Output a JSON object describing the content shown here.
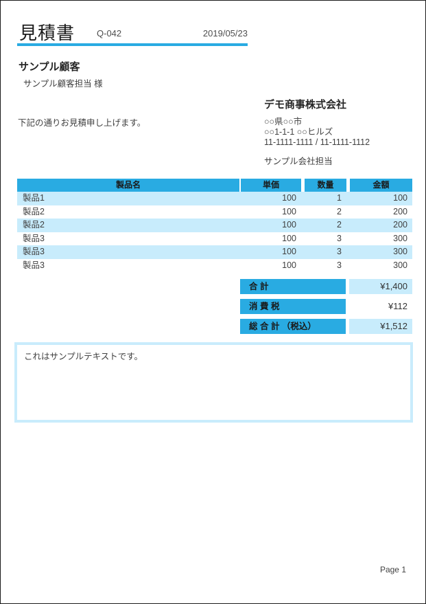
{
  "document": {
    "title": "見積書",
    "quote_number": "Q-042",
    "date": "2019/05/23"
  },
  "customer": {
    "name": "サンプル顧客",
    "contact": "サンプル顧客担当 様"
  },
  "greeting": "下記の通りお見積申し上げます。",
  "company": {
    "name": "デモ商事株式会社",
    "address_line1": "○○県○○市",
    "address_line2": "○○1-1-1 ○○ヒルズ",
    "phone_fax": "11-1111-1111 / 11-1111-1112",
    "contact": "サンプル会社担当"
  },
  "items_table": {
    "headers": {
      "name": "製品名",
      "unit_price": "単価",
      "quantity": "数量",
      "amount": "金額"
    },
    "rows": [
      {
        "name": "製品1",
        "unit_price": "100",
        "quantity": "1",
        "amount": "100"
      },
      {
        "name": "製品2",
        "unit_price": "100",
        "quantity": "2",
        "amount": "200"
      },
      {
        "name": "製品2",
        "unit_price": "100",
        "quantity": "2",
        "amount": "200"
      },
      {
        "name": "製品3",
        "unit_price": "100",
        "quantity": "3",
        "amount": "300"
      },
      {
        "name": "製品3",
        "unit_price": "100",
        "quantity": "3",
        "amount": "300"
      },
      {
        "name": "製品3",
        "unit_price": "100",
        "quantity": "3",
        "amount": "300"
      }
    ]
  },
  "totals": {
    "subtotal_label": "合 計",
    "subtotal_value": "¥1,400",
    "tax_label": "消 費 税",
    "tax_value": "¥112",
    "grand_total_label": "総 合 計 （税込）",
    "grand_total_value": "¥1,512"
  },
  "notes": "これはサンプルテキストです。",
  "footer": {
    "page": "Page 1"
  },
  "colors": {
    "accent_blue": "#29abe2",
    "light_blue": "#c8ecfc",
    "notes_border": "#c9ecfc",
    "page_border": "#1a1a1a"
  }
}
